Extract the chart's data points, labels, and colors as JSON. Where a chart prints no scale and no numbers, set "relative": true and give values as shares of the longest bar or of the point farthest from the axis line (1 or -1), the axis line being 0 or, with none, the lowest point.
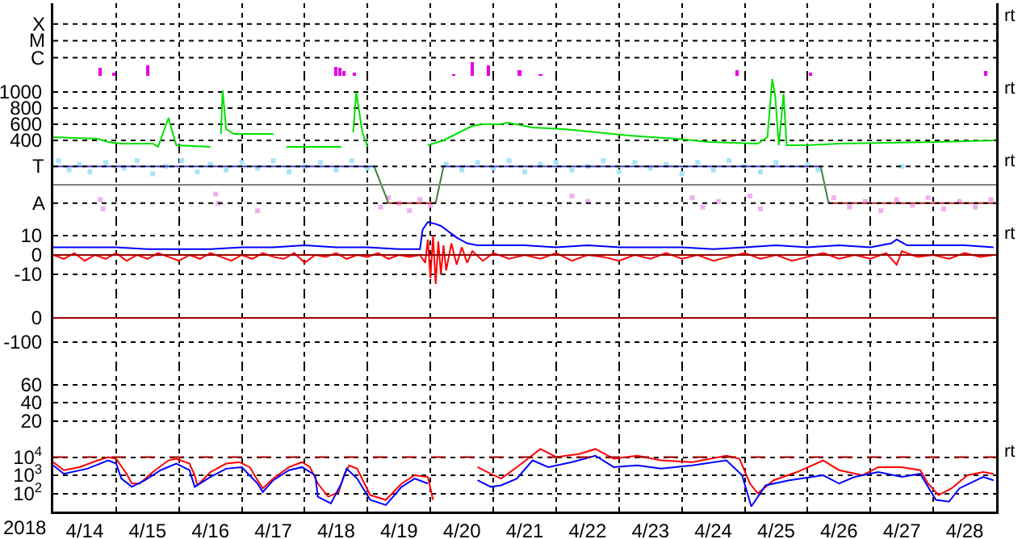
{
  "chart_data": [
    {
      "type": "bar",
      "relative": true,
      "grid": "x",
      "tick_labels": "y",
      "annotations": [
        "rt"
      ],
      "xlim": [
        "2018-04-14",
        "2018-04-29"
      ],
      "xticks": [
        {
          "value": "2018-04-15",
          "label": null
        },
        {
          "value": "2018-04-16",
          "label": null
        },
        {
          "value": "2018-04-17",
          "label": null
        },
        {
          "value": "2018-04-18",
          "label": null
        },
        {
          "value": "2018-04-19",
          "label": null
        },
        {
          "value": "2018-04-20",
          "label": null
        },
        {
          "value": "2018-04-21",
          "label": null
        },
        {
          "value": "2018-04-22",
          "label": null
        },
        {
          "value": "2018-04-23",
          "label": null
        },
        {
          "value": "2018-04-24",
          "label": null
        },
        {
          "value": "2018-04-25",
          "label": null
        },
        {
          "value": "2018-04-26",
          "label": null
        },
        {
          "value": "2018-04-27",
          "label": null
        },
        {
          "value": "2018-04-28",
          "label": null
        }
      ],
      "ref_lines": [
        {
          "axis": "y",
          "value": 3.78,
          "label": "X",
          "color": "#000000",
          "line_style": "dotted"
        },
        {
          "axis": "y",
          "value": 2.56,
          "label": "M",
          "color": "#000000",
          "line_style": "dotted"
        },
        {
          "axis": "y",
          "value": 1.33,
          "label": "C",
          "color": "#000000",
          "line_style": "dotted"
        }
      ],
      "x": [
        "2018-04-14T18:00",
        "2018-04-14T23:00",
        "2018-04-15T12:00",
        "2018-04-18T12:00",
        "2018-04-18T13:30",
        "2018-04-18T15:00",
        "2018-04-18T19:00",
        "2018-04-20T09:00",
        "2018-04-20T16:00",
        "2018-04-20T22:00",
        "2018-04-21T10:00",
        "2018-04-21T18:00",
        "2018-04-24T21:00",
        "2018-04-26T01:00",
        "2018-04-28T20:00"
      ],
      "series": [
        {
          "color": "#e600e6",
          "values": [
            0.56,
            0.22,
            0.78,
            0.67,
            0.56,
            0.33,
            0.22,
            0.11,
            1,
            0.78,
            0.44,
            0.11,
            0.44,
            0.22,
            0.33
          ]
        }
      ]
    },
    {
      "type": "line",
      "grid": true,
      "tick_labels": "y",
      "annotations": [
        "rt"
      ],
      "xlim": [
        "2018-04-14",
        "2018-04-29"
      ],
      "xticks": [
        {
          "value": "2018-04-15",
          "label": null
        },
        {
          "value": "2018-04-16",
          "label": null
        },
        {
          "value": "2018-04-17",
          "label": null
        },
        {
          "value": "2018-04-18",
          "label": null
        },
        {
          "value": "2018-04-19",
          "label": null
        },
        {
          "value": "2018-04-20",
          "label": null
        },
        {
          "value": "2018-04-21",
          "label": null
        },
        {
          "value": "2018-04-22",
          "label": null
        },
        {
          "value": "2018-04-23",
          "label": null
        },
        {
          "value": "2018-04-24",
          "label": null
        },
        {
          "value": "2018-04-25",
          "label": null
        },
        {
          "value": "2018-04-26",
          "label": null
        },
        {
          "value": "2018-04-27",
          "label": null
        },
        {
          "value": "2018-04-28",
          "label": null
        }
      ],
      "ylim": [
        300,
        1200
      ],
      "yticks": [
        400,
        600,
        800,
        1000
      ],
      "series": [
        {
          "color": "#00e000",
          "x": [
            "2018-04-14T00:00",
            "2018-04-14T17:00",
            "2018-04-14T21:00",
            "2018-04-15T02:00",
            "2018-04-15T14:00",
            "2018-04-15T16:00",
            "2018-04-15T18:00",
            "2018-04-15T20:00",
            "2018-04-15T21:30",
            "2018-04-15T23:00",
            "2018-04-16T12:00",
            "2018-04-16T14:00",
            "2018-04-16T16:00",
            "2018-04-16T16:40",
            "2018-04-16T18:00",
            "2018-04-16T21:00",
            "2018-04-17T12:00",
            "2018-04-17T14:00",
            "2018-04-17T17:00",
            "2018-04-18T14:00",
            "2018-04-18T15:00",
            "2018-04-18T18:30",
            "2018-04-18T19:40",
            "2018-04-18T22:00",
            "2018-04-19T00:00",
            "2018-04-19T03:00",
            "2018-04-19T23:00",
            "2018-04-20T05:00",
            "2018-04-20T11:00",
            "2018-04-20T16:00",
            "2018-04-20T20:00",
            "2018-04-21T02:30",
            "2018-04-21T05:30",
            "2018-04-21T15:00",
            "2018-04-22T03:00",
            "2018-04-22T15:30",
            "2018-04-23T03:40",
            "2018-04-23T22:00",
            "2018-04-24T10:30",
            "2018-04-25T05:00",
            "2018-04-25T08:40",
            "2018-04-25T10:30",
            "2018-04-25T11:40",
            "2018-04-25T13:00",
            "2018-04-25T14:50",
            "2018-04-25T16:00",
            "2018-04-25T23:30",
            "2018-04-26T11:40",
            "2018-04-28T00:30",
            "2018-04-28T23:20"
          ],
          "values": [
            440,
            420,
            380,
            360,
            360,
            320,
            500,
            680,
            500,
            340,
            320,
            null,
            480,
            1020,
            540,
            480,
            480,
            null,
            320,
            320,
            null,
            500,
            1000,
            500,
            320,
            null,
            340,
            400,
            500,
            580,
            600,
            600,
            620,
            560,
            540,
            500,
            460,
            420,
            380,
            360,
            440,
            1160,
            940,
            340,
            980,
            340,
            340,
            360,
            380,
            400
          ]
        }
      ]
    },
    {
      "type": "line",
      "relative": true,
      "grid": "x",
      "tick_labels": "y",
      "annotations": [
        "rt"
      ],
      "xlim": [
        "2018-04-14",
        "2018-04-29"
      ],
      "xticks": [
        {
          "value": "2018-04-15",
          "label": null
        },
        {
          "value": "2018-04-16",
          "label": null
        },
        {
          "value": "2018-04-17",
          "label": null
        },
        {
          "value": "2018-04-18",
          "label": null
        },
        {
          "value": "2018-04-19",
          "label": null
        },
        {
          "value": "2018-04-20",
          "label": null
        },
        {
          "value": "2018-04-21",
          "label": null
        },
        {
          "value": "2018-04-22",
          "label": null
        },
        {
          "value": "2018-04-23",
          "label": null
        },
        {
          "value": "2018-04-24",
          "label": null
        },
        {
          "value": "2018-04-25",
          "label": null
        },
        {
          "value": "2018-04-26",
          "label": null
        },
        {
          "value": "2018-04-27",
          "label": null
        },
        {
          "value": "2018-04-28",
          "label": null
        }
      ],
      "ref_lines": [
        {
          "axis": "y",
          "value": 0,
          "label": null,
          "color": "#808080"
        },
        {
          "axis": "y",
          "value": 0.71,
          "label": "T",
          "color": "#000000",
          "line_style": "dotted"
        },
        {
          "axis": "y",
          "value": -0.71,
          "label": "A",
          "color": "#000000",
          "line_style": "dotted"
        }
      ],
      "series": [
        {
          "type": "scatter",
          "color": "#a8e4f8",
          "marker": "square",
          "x": [
            "2018-04-14T02:00",
            "2018-04-14T06:00",
            "2018-04-14T10:00",
            "2018-04-14T14:00",
            "2018-04-14T20:00",
            "2018-04-15T03:00",
            "2018-04-15T08:00",
            "2018-04-15T14:00",
            "2018-04-15T19:00",
            "2018-04-16T01:00",
            "2018-04-16T07:00",
            "2018-04-16T12:00",
            "2018-04-16T18:00",
            "2018-04-17T00:00",
            "2018-04-17T06:00",
            "2018-04-17T12:00",
            "2018-04-17T18:00",
            "2018-04-18T00:00",
            "2018-04-18T06:00",
            "2018-04-18T12:00",
            "2018-04-18T18:00",
            "2018-04-19T00:00",
            "2018-04-20T06:00",
            "2018-04-20T12:00",
            "2018-04-20T18:00",
            "2018-04-21T00:00",
            "2018-04-21T06:00",
            "2018-04-21T12:00",
            "2018-04-21T18:00",
            "2018-04-22T00:00",
            "2018-04-22T06:00",
            "2018-04-22T12:00",
            "2018-04-22T18:00",
            "2018-04-23T00:00",
            "2018-04-23T06:00",
            "2018-04-23T12:00",
            "2018-04-23T18:00",
            "2018-04-24T00:00",
            "2018-04-24T06:00",
            "2018-04-24T12:00",
            "2018-04-24T18:00",
            "2018-04-25T00:00",
            "2018-04-25T06:00",
            "2018-04-25T12:00",
            "2018-04-25T18:00",
            "2018-04-26T00:00",
            "2018-04-26T04:00",
            "2018-04-27T12:00"
          ],
          "values": [
            0.93,
            0.57,
            0.79,
            0.5,
            0.86,
            0.64,
            0.93,
            0.43,
            0.71,
            0.93,
            0.5,
            0.79,
            0.57,
            0.86,
            0.64,
            0.93,
            0.5,
            0.71,
            0.86,
            0.57,
            0.93,
            0.64,
            0.79,
            0.57,
            0.86,
            0.64,
            0.93,
            0.5,
            0.79,
            0.86,
            0.57,
            0.71,
            0.93,
            0.5,
            0.86,
            0.64,
            0.79,
            0.43,
            0.86,
            0.57,
            0.93,
            0.71,
            0.5,
            0.86,
            null,
            0.79,
            0.57,
            0.71
          ]
        },
        {
          "type": "scatter",
          "color": "#f0b0f0",
          "marker": "square",
          "x": [
            "2018-04-14T18:00",
            "2018-04-14T19:00",
            "2018-04-16T14:00",
            "2018-04-16T15:00",
            "2018-04-17T06:00",
            "2018-04-19T05:00",
            "2018-04-19T08:00",
            "2018-04-19T12:00",
            "2018-04-19T16:00",
            "2018-04-19T20:00",
            "2018-04-20T00:00",
            "2018-04-22T06:00",
            "2018-04-22T12:00",
            "2018-04-24T04:00",
            "2018-04-24T08:00",
            "2018-04-24T14:00",
            "2018-04-25T02:00",
            "2018-04-25T06:00",
            "2018-04-26T10:00",
            "2018-04-26T16:00",
            "2018-04-26T22:00",
            "2018-04-27T04:00",
            "2018-04-27T10:00",
            "2018-04-27T16:00",
            "2018-04-27T22:00",
            "2018-04-28T04:00",
            "2018-04-28T10:00",
            "2018-04-28T16:00",
            "2018-04-28T22:00"
          ],
          "values": [
            -0.57,
            -0.93,
            -0.36,
            -0.71,
            -1,
            -0.86,
            -0.5,
            -0.71,
            -1,
            -0.57,
            -0.79,
            -0.43,
            -0.64,
            -0.5,
            -0.86,
            -0.64,
            -0.43,
            -0.93,
            -0.5,
            -0.86,
            -0.64,
            -1,
            -0.57,
            -0.79,
            -0.5,
            -0.93,
            -0.64,
            -0.86,
            -0.57
          ]
        },
        {
          "color": "#4040e0",
          "x": [
            "2018-04-14T00:00",
            "2018-04-19T02:30",
            "2018-04-19T05:00",
            "2018-04-20T05:00",
            "2018-04-26T05:00"
          ],
          "values": [
            0.71,
            0.71,
            null,
            0.71,
            0.71
          ]
        },
        {
          "color": "#d02020",
          "x": [
            "2018-04-19T08:00",
            "2018-04-20T02:00",
            "2018-04-24T00:00",
            "2018-04-26T08:00",
            "2018-04-28T23:20"
          ],
          "values": [
            -0.71,
            -0.71,
            null,
            -0.71,
            -0.71
          ]
        },
        {
          "color": "#408040",
          "x": [
            "2018-04-19T02:30",
            "2018-04-19T08:00",
            "2018-04-19T12:00",
            "2018-04-20T02:00",
            "2018-04-20T05:00",
            "2018-04-24T00:00",
            "2018-04-26T05:00",
            "2018-04-26T08:00"
          ],
          "values": [
            0.71,
            -0.71,
            null,
            -0.71,
            0.71,
            null,
            0.71,
            -0.71
          ]
        }
      ]
    },
    {
      "type": "line",
      "grid": true,
      "tick_labels": "y",
      "annotations": [
        "rt"
      ],
      "xlim": [
        "2018-04-14",
        "2018-04-29"
      ],
      "xticks": [
        {
          "value": "2018-04-15",
          "label": null
        },
        {
          "value": "2018-04-16",
          "label": null
        },
        {
          "value": "2018-04-17",
          "label": null
        },
        {
          "value": "2018-04-18",
          "label": null
        },
        {
          "value": "2018-04-19",
          "label": null
        },
        {
          "value": "2018-04-20",
          "label": null
        },
        {
          "value": "2018-04-21",
          "label": null
        },
        {
          "value": "2018-04-22",
          "label": null
        },
        {
          "value": "2018-04-23",
          "label": null
        },
        {
          "value": "2018-04-24",
          "label": null
        },
        {
          "value": "2018-04-25",
          "label": null
        },
        {
          "value": "2018-04-26",
          "label": null
        },
        {
          "value": "2018-04-27",
          "label": null
        },
        {
          "value": "2018-04-28",
          "label": null
        }
      ],
      "ylim": [
        -20,
        17.5
      ],
      "yticks": [
        10,
        0,
        -10
      ],
      "ref_lines": [
        {
          "axis": "y",
          "value": 0,
          "label": null,
          "color": "#a00000"
        }
      ],
      "series": [
        {
          "color": "#0000ff",
          "x": [
            "2018-04-14T00:00",
            "2018-04-14T12:00",
            "2018-04-15T00:00",
            "2018-04-15T12:00",
            "2018-04-16T00:00",
            "2018-04-16T12:00",
            "2018-04-17T00:00",
            "2018-04-17T12:00",
            "2018-04-18T00:00",
            "2018-04-18T12:00",
            "2018-04-19T00:00",
            "2018-04-19T12:00",
            "2018-04-19T20:00",
            "2018-04-19T21:00",
            "2018-04-19T23:00",
            "2018-04-20T02:00",
            "2018-04-20T04:00",
            "2018-04-20T06:00",
            "2018-04-20T08:00",
            "2018-04-20T10:00",
            "2018-04-20T14:00",
            "2018-04-20T18:00",
            "2018-04-21T00:00",
            "2018-04-21T12:00",
            "2018-04-22T00:00",
            "2018-04-22T12:00",
            "2018-04-23T00:00",
            "2018-04-23T12:00",
            "2018-04-24T00:00",
            "2018-04-24T12:00",
            "2018-04-25T00:00",
            "2018-04-25T12:00",
            "2018-04-26T00:00",
            "2018-04-26T12:00",
            "2018-04-27T00:00",
            "2018-04-27T08:00",
            "2018-04-27T10:00",
            "2018-04-27T14:00",
            "2018-04-28T00:00",
            "2018-04-28T12:00",
            "2018-04-28T23:00"
          ],
          "values": [
            4,
            4,
            4,
            3,
            3,
            3,
            4,
            4,
            5,
            4,
            4,
            3,
            3,
            13,
            17,
            16,
            15,
            13,
            11,
            9,
            6,
            5,
            5,
            5,
            4,
            5,
            4,
            4,
            4,
            3,
            4,
            5,
            4,
            5,
            4,
            6,
            8,
            5,
            5,
            5,
            4
          ]
        },
        {
          "color": "#ff0000",
          "x": [
            "2018-04-14T00:00",
            "2018-04-14T04:00",
            "2018-04-14T08:00",
            "2018-04-14T12:00",
            "2018-04-14T16:00",
            "2018-04-14T20:00",
            "2018-04-15T00:00",
            "2018-04-15T04:00",
            "2018-04-15T08:00",
            "2018-04-15T12:00",
            "2018-04-15T16:00",
            "2018-04-15T20:00",
            "2018-04-16T00:00",
            "2018-04-16T04:00",
            "2018-04-16T08:00",
            "2018-04-16T12:00",
            "2018-04-16T16:00",
            "2018-04-16T20:00",
            "2018-04-17T00:00",
            "2018-04-17T04:00",
            "2018-04-17T08:00",
            "2018-04-17T12:00",
            "2018-04-17T16:00",
            "2018-04-17T20:00",
            "2018-04-18T00:00",
            "2018-04-18T04:00",
            "2018-04-18T08:00",
            "2018-04-18T12:00",
            "2018-04-18T16:00",
            "2018-04-18T20:00",
            "2018-04-19T00:00",
            "2018-04-19T04:00",
            "2018-04-19T08:00",
            "2018-04-19T12:00",
            "2018-04-19T16:00",
            "2018-04-19T20:00",
            "2018-04-19T22:00",
            "2018-04-19T23:00",
            "2018-04-20T00:00",
            "2018-04-20T01:00",
            "2018-04-20T02:00",
            "2018-04-20T03:00",
            "2018-04-20T04:00",
            "2018-04-20T05:00",
            "2018-04-20T06:00",
            "2018-04-20T08:00",
            "2018-04-20T10:00",
            "2018-04-20T12:00",
            "2018-04-20T14:00",
            "2018-04-20T16:00",
            "2018-04-20T20:00",
            "2018-04-21T00:00",
            "2018-04-21T06:00",
            "2018-04-21T12:00",
            "2018-04-21T18:00",
            "2018-04-22T00:00",
            "2018-04-22T06:00",
            "2018-04-22T12:00",
            "2018-04-22T18:00",
            "2018-04-23T00:00",
            "2018-04-23T06:00",
            "2018-04-23T12:00",
            "2018-04-23T18:00",
            "2018-04-24T00:00",
            "2018-04-24T06:00",
            "2018-04-24T12:00",
            "2018-04-24T18:00",
            "2018-04-25T00:00",
            "2018-04-25T06:00",
            "2018-04-25T12:00",
            "2018-04-25T18:00",
            "2018-04-26T00:00",
            "2018-04-26T06:00",
            "2018-04-26T12:00",
            "2018-04-26T18:00",
            "2018-04-27T00:00",
            "2018-04-27T06:00",
            "2018-04-27T10:00",
            "2018-04-27T12:00",
            "2018-04-27T18:00",
            "2018-04-28T00:00",
            "2018-04-28T06:00",
            "2018-04-28T12:00",
            "2018-04-28T18:00",
            "2018-04-28T23:00"
          ],
          "values": [
            0,
            -2,
            1,
            -3,
            0,
            -2,
            1,
            -3,
            0,
            -2,
            1,
            -1,
            -3,
            0,
            -2,
            1,
            -1,
            -3,
            0,
            -2,
            1,
            -1,
            -2,
            1,
            -4,
            0,
            -1,
            1,
            -2,
            0,
            -1,
            1,
            -2,
            0,
            -1,
            0,
            -4,
            8,
            -12,
            10,
            -15,
            7,
            -10,
            5,
            -8,
            6,
            -5,
            4,
            -4,
            2,
            -3,
            1,
            -2,
            0,
            -2,
            1,
            -3,
            0,
            -1,
            -3,
            0,
            -2,
            1,
            -2,
            0,
            -3,
            -1,
            1,
            -2,
            0,
            -3,
            -1,
            1,
            -2,
            0,
            -2,
            1,
            -5,
            2,
            -1,
            0,
            -2,
            1,
            -1,
            0
          ]
        }
      ]
    },
    {
      "type": "line",
      "grid": true,
      "tick_labels": "y",
      "xlim": [
        "2018-04-14",
        "2018-04-29"
      ],
      "xticks": [
        {
          "value": "2018-04-15",
          "label": null
        },
        {
          "value": "2018-04-16",
          "label": null
        },
        {
          "value": "2018-04-17",
          "label": null
        },
        {
          "value": "2018-04-18",
          "label": null
        },
        {
          "value": "2018-04-19",
          "label": null
        },
        {
          "value": "2018-04-20",
          "label": null
        },
        {
          "value": "2018-04-21",
          "label": null
        },
        {
          "value": "2018-04-22",
          "label": null
        },
        {
          "value": "2018-04-23",
          "label": null
        },
        {
          "value": "2018-04-24",
          "label": null
        },
        {
          "value": "2018-04-25",
          "label": null
        },
        {
          "value": "2018-04-26",
          "label": null
        },
        {
          "value": "2018-04-27",
          "label": null
        },
        {
          "value": "2018-04-28",
          "label": null
        }
      ],
      "ylim": [
        -200,
        100
      ],
      "yticks": [
        0,
        -100
      ],
      "ref_lines": [
        {
          "axis": "y",
          "value": 0,
          "label": null,
          "color": "#a00000"
        }
      ]
    },
    {
      "type": "line",
      "grid": true,
      "tick_labels": "y",
      "xlim": [
        "2018-04-14",
        "2018-04-29"
      ],
      "xticks": [
        {
          "value": "2018-04-15",
          "label": null
        },
        {
          "value": "2018-04-16",
          "label": null
        },
        {
          "value": "2018-04-17",
          "label": null
        },
        {
          "value": "2018-04-18",
          "label": null
        },
        {
          "value": "2018-04-19",
          "label": null
        },
        {
          "value": "2018-04-20",
          "label": null
        },
        {
          "value": "2018-04-21",
          "label": null
        },
        {
          "value": "2018-04-22",
          "label": null
        },
        {
          "value": "2018-04-23",
          "label": null
        },
        {
          "value": "2018-04-24",
          "label": null
        },
        {
          "value": "2018-04-25",
          "label": null
        },
        {
          "value": "2018-04-26",
          "label": null
        },
        {
          "value": "2018-04-27",
          "label": null
        },
        {
          "value": "2018-04-28",
          "label": null
        }
      ],
      "ylim": [
        0,
        80
      ],
      "yticks": [
        20,
        40,
        60
      ]
    },
    {
      "type": "line",
      "log": true,
      "grid": true,
      "xlabel": "2018",
      "annotations": [
        "rt"
      ],
      "xlim": [
        "2018-04-14",
        "2018-04-29"
      ],
      "xticks": [
        {
          "value": "2018-04-14T12:00",
          "label": "4/14"
        },
        {
          "value": "2018-04-15",
          "label": null
        },
        {
          "value": "2018-04-15T12:00",
          "label": "4/15"
        },
        {
          "value": "2018-04-16",
          "label": null
        },
        {
          "value": "2018-04-16T12:00",
          "label": "4/16"
        },
        {
          "value": "2018-04-17",
          "label": null
        },
        {
          "value": "2018-04-17T12:00",
          "label": "4/17"
        },
        {
          "value": "2018-04-18",
          "label": null
        },
        {
          "value": "2018-04-18T12:00",
          "label": "4/18"
        },
        {
          "value": "2018-04-19",
          "label": null
        },
        {
          "value": "2018-04-19T12:00",
          "label": "4/19"
        },
        {
          "value": "2018-04-20",
          "label": null
        },
        {
          "value": "2018-04-20T12:00",
          "label": "4/20"
        },
        {
          "value": "2018-04-21",
          "label": null
        },
        {
          "value": "2018-04-21T12:00",
          "label": "4/21"
        },
        {
          "value": "2018-04-22",
          "label": null
        },
        {
          "value": "2018-04-22T12:00",
          "label": "4/22"
        },
        {
          "value": "2018-04-23",
          "label": null
        },
        {
          "value": "2018-04-23T12:00",
          "label": "4/23"
        },
        {
          "value": "2018-04-24",
          "label": null
        },
        {
          "value": "2018-04-24T12:00",
          "label": "4/24"
        },
        {
          "value": "2018-04-25",
          "label": null
        },
        {
          "value": "2018-04-25T12:00",
          "label": "4/25"
        },
        {
          "value": "2018-04-26",
          "label": null
        },
        {
          "value": "2018-04-26T12:00",
          "label": "4/26"
        },
        {
          "value": "2018-04-27",
          "label": null
        },
        {
          "value": "2018-04-27T12:00",
          "label": "4/27"
        },
        {
          "value": "2018-04-28",
          "label": null
        },
        {
          "value": "2018-04-28T12:00",
          "label": "4/28"
        }
      ],
      "ylim": [
        10,
        100000
      ],
      "yticks": [
        {
          "value": 10000,
          "label": "10$^{4}$"
        },
        {
          "value": 1000,
          "label": "10$^{3}$"
        },
        {
          "value": 100,
          "label": "10$^{2}$"
        }
      ],
      "ref_lines": [
        {
          "axis": "y",
          "value": 10000,
          "label": null,
          "color": "#a00000",
          "line_style": "dashed"
        }
      ],
      "series": [
        {
          "color": "#ff0000",
          "x": [
            "2018-04-14T00:00",
            "2018-04-14T04:00",
            "2018-04-14T10:00",
            "2018-04-14T17:00",
            "2018-04-14T21:00",
            "2018-04-15T00:00",
            "2018-04-15T04:00",
            "2018-04-15T06:00",
            "2018-04-15T09:00",
            "2018-04-15T14:00",
            "2018-04-15T20:00",
            "2018-04-15T23:00",
            "2018-04-16T04:00",
            "2018-04-16T06:00",
            "2018-04-16T07:00",
            "2018-04-16T12:00",
            "2018-04-16T18:00",
            "2018-04-16T23:00",
            "2018-04-17T03:00",
            "2018-04-17T06:00",
            "2018-04-17T08:00",
            "2018-04-17T12:00",
            "2018-04-17T18:00",
            "2018-04-17T23:00",
            "2018-04-18T02:00",
            "2018-04-18T05:00",
            "2018-04-18T09:00",
            "2018-04-18T13:00",
            "2018-04-18T15:00",
            "2018-04-18T17:00",
            "2018-04-18T20:00",
            "2018-04-19T01:00",
            "2018-04-19T07:00",
            "2018-04-19T13:00",
            "2018-04-19T18:00",
            "2018-04-19T23:00",
            "2018-04-20T01:00",
            "2018-04-20T02:00",
            "2018-04-20T08:00",
            "2018-04-20T14:00",
            "2018-04-20T18:00",
            "2018-04-20T23:00",
            "2018-04-21T03:00",
            "2018-04-21T09:00",
            "2018-04-21T18:00",
            "2018-04-22T00:00",
            "2018-04-22T09:00",
            "2018-04-22T15:00",
            "2018-04-22T22:00",
            "2018-04-23T07:00",
            "2018-04-23T16:00",
            "2018-04-24T04:00",
            "2018-04-24T17:00",
            "2018-04-24T22:00",
            "2018-04-25T02:00",
            "2018-04-25T05:00",
            "2018-04-25T11:00",
            "2018-04-25T20:00",
            "2018-04-26T06:00",
            "2018-04-26T12:00",
            "2018-04-26T21:00",
            "2018-04-27T03:00",
            "2018-04-27T12:00",
            "2018-04-27T19:00",
            "2018-04-27T22:00",
            "2018-04-28T02:00",
            "2018-04-28T07:00",
            "2018-04-28T13:00",
            "2018-04-28T19:00",
            "2018-04-28T23:00"
          ],
          "values": [
            5300,
            1900,
            2800,
            6600,
            10000,
            8100,
            1200,
            350,
            350,
            1500,
            6600,
            8100,
            4400,
            1000,
            280,
            1500,
            4400,
            5300,
            2800,
            530,
            190,
            660,
            2800,
            5300,
            2800,
            350,
            66,
            120,
            1000,
            3500,
            2300,
            81,
            44,
            350,
            1000,
            810,
            44,
            null,
            null,
            null,
            2800,
            1200,
            660,
            2800,
            28000,
            10000,
            15000,
            28000,
            8100,
            12000,
            6600,
            5300,
            12000,
            8100,
            350,
            100,
            530,
            1500,
            6600,
            1900,
            1000,
            2800,
            2800,
            1900,
            350,
            81,
            190,
            1000,
            1500,
            1200
          ]
        },
        {
          "color": "#0000ff",
          "x": [
            "2018-04-14T00:00",
            "2018-04-14T04:00",
            "2018-04-14T13:00",
            "2018-04-14T21:00",
            "2018-04-15T00:00",
            "2018-04-15T02:00",
            "2018-04-15T06:00",
            "2018-04-15T11:00",
            "2018-04-15T17:00",
            "2018-04-15T23:00",
            "2018-04-16T04:00",
            "2018-04-16T06:00",
            "2018-04-16T12:00",
            "2018-04-16T18:00",
            "2018-04-17T00:00",
            "2018-04-17T06:00",
            "2018-04-17T08:00",
            "2018-04-17T12:00",
            "2018-04-17T18:00",
            "2018-04-17T23:00",
            "2018-04-18T04:00",
            "2018-04-18T05:00",
            "2018-04-18T10:00",
            "2018-04-18T14:00",
            "2018-04-18T16:00",
            "2018-04-18T20:00",
            "2018-04-19T01:00",
            "2018-04-19T07:00",
            "2018-04-19T13:00",
            "2018-04-19T18:00",
            "2018-04-19T23:00",
            "2018-04-20T00:00",
            "2018-04-20T08:00",
            "2018-04-20T15:00",
            "2018-04-20T18:00",
            "2018-04-20T23:00",
            "2018-04-21T03:00",
            "2018-04-21T09:00",
            "2018-04-21T15:00",
            "2018-04-21T21:00",
            "2018-04-22T06:00",
            "2018-04-22T15:00",
            "2018-04-22T22:00",
            "2018-04-23T07:00",
            "2018-04-23T16:00",
            "2018-04-24T04:00",
            "2018-04-24T17:00",
            "2018-04-24T23:00",
            "2018-04-25T02:30",
            "2018-04-25T08:00",
            "2018-04-25T17:00",
            "2018-04-26T06:00",
            "2018-04-26T12:00",
            "2018-04-26T18:00",
            "2018-04-27T03:00",
            "2018-04-27T12:00",
            "2018-04-27T19:00",
            "2018-04-28T01:00",
            "2018-04-28T06:00",
            "2018-04-28T10:00",
            "2018-04-28T19:00",
            "2018-04-28T23:00"
          ],
          "values": [
            3500,
            1200,
            2300,
            6600,
            4400,
            660,
            230,
            530,
            1900,
            4400,
            1900,
            230,
            810,
            2300,
            2800,
            350,
            120,
            530,
            1900,
            2800,
            1000,
            66,
            28,
            350,
            2300,
            660,
            44,
            23,
            230,
            660,
            350,
            null,
            null,
            null,
            530,
            230,
            280,
            660,
            6600,
            2800,
            5300,
            12000,
            2800,
            3500,
            2300,
            3500,
            6600,
            1000,
            19,
            280,
            530,
            1000,
            350,
            810,
            1500,
            810,
            1200,
            44,
            35,
            190,
            810,
            530
          ]
        }
      ]
    }
  ]
}
